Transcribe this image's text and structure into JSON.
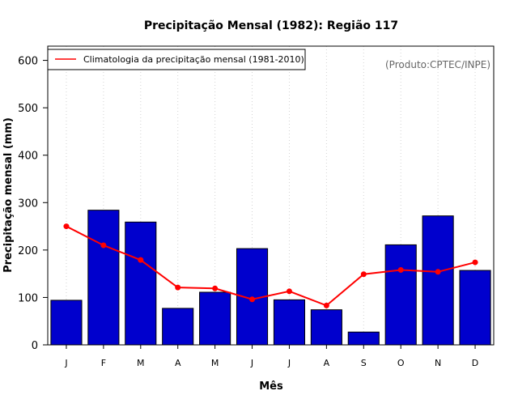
{
  "chart_data": {
    "type": "bar",
    "title": "Precipitação Mensal (1982): Região 117",
    "xlabel": "Mês",
    "ylabel": "Precipitação mensal (mm)",
    "ylim": [
      0,
      630
    ],
    "yticks": [
      0,
      100,
      200,
      300,
      400,
      500,
      600
    ],
    "grid": "vertical dotted",
    "categories": [
      "J",
      "F",
      "M",
      "A",
      "M",
      "J",
      "J",
      "A",
      "S",
      "O",
      "N",
      "D"
    ],
    "series": [
      {
        "name": "Precipitação mensal (1982)",
        "kind": "bar",
        "color": "#0000cd",
        "values": [
          94,
          284,
          259,
          77,
          111,
          203,
          95,
          74,
          27,
          211,
          272,
          157
        ]
      },
      {
        "name": "Climatologia da precipitação mensal (1981-2010)",
        "kind": "line",
        "color": "#ff0000",
        "values": [
          250,
          210,
          179,
          121,
          119,
          96,
          113,
          83,
          149,
          158,
          154,
          174
        ]
      }
    ],
    "legend": {
      "position": "top-left",
      "entries": [
        "Climatologia da precipitação mensal (1981-2010)"
      ]
    },
    "annotation": "(Produto:CPTEC/INPE)"
  }
}
